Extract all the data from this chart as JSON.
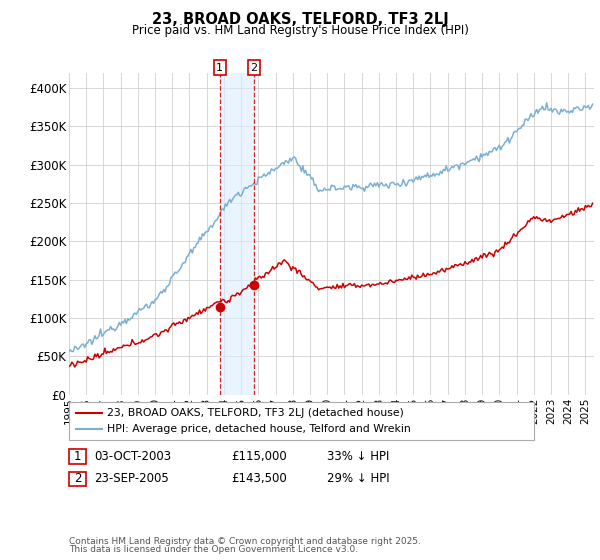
{
  "title": "23, BROAD OAKS, TELFORD, TF3 2LJ",
  "subtitle": "Price paid vs. HM Land Registry's House Price Index (HPI)",
  "ytick_labels": [
    "£0",
    "£50K",
    "£100K",
    "£150K",
    "£200K",
    "£250K",
    "£300K",
    "£350K",
    "£400K"
  ],
  "yticks": [
    0,
    50000,
    100000,
    150000,
    200000,
    250000,
    300000,
    350000,
    400000
  ],
  "ylim": [
    0,
    420000
  ],
  "xmin": 1995,
  "xmax": 2025.5,
  "legend_entries": [
    "23, BROAD OAKS, TELFORD, TF3 2LJ (detached house)",
    "HPI: Average price, detached house, Telford and Wrekin"
  ],
  "legend_colors": [
    "#cc0000",
    "#7aafd4"
  ],
  "marker1_year": 2003.75,
  "marker1_price": 115000,
  "marker2_year": 2005.72,
  "marker2_price": 143500,
  "annotation1_text": "03-OCT-2003",
  "annotation1_price": "£115,000",
  "annotation1_hpi": "33% ↓ HPI",
  "annotation2_text": "23-SEP-2005",
  "annotation2_price": "£143,500",
  "annotation2_hpi": "29% ↓ HPI",
  "footer_line1": "Contains HM Land Registry data © Crown copyright and database right 2025.",
  "footer_line2": "This data is licensed under the Open Government Licence v3.0.",
  "background_color": "#ffffff",
  "grid_color": "#d0d0d0",
  "hpi_color": "#7aafd4",
  "price_color": "#cc0000"
}
